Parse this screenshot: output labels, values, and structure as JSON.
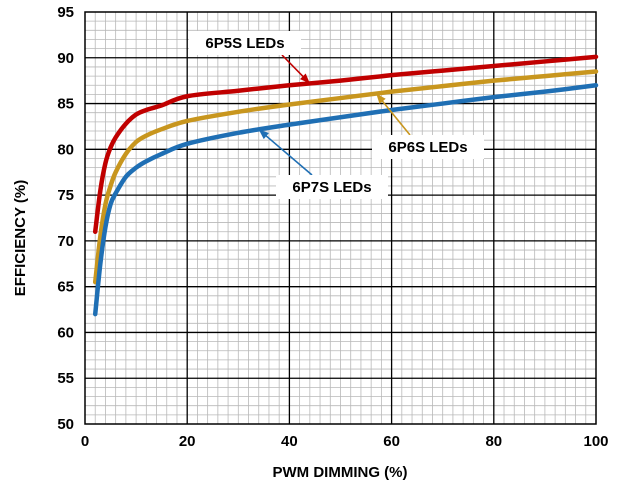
{
  "chart_data": {
    "type": "line",
    "xlabel": "PWM DIMMING (%)",
    "ylabel": "EFFICIENCY (%)",
    "xlim": [
      0,
      100
    ],
    "ylim": [
      50,
      95
    ],
    "x_ticks": [
      "0",
      "20",
      "40",
      "60",
      "80",
      "100"
    ],
    "y_ticks": [
      "50",
      "55",
      "60",
      "65",
      "70",
      "75",
      "80",
      "85",
      "90",
      "95"
    ],
    "grid": true,
    "series": [
      {
        "name": "6P5S LEDs",
        "color": "#c00000",
        "x": [
          2,
          3,
          4,
          5,
          6,
          8,
          10,
          12,
          15,
          20,
          30,
          40,
          50,
          60,
          70,
          80,
          90,
          100
        ],
        "y": [
          71,
          75.5,
          78.5,
          80.2,
          81.3,
          82.8,
          83.8,
          84.3,
          84.8,
          85.8,
          86.4,
          87,
          87.5,
          88.1,
          88.6,
          89.1,
          89.6,
          90.1
        ]
      },
      {
        "name": "6P6S LEDs",
        "color": "#c8961e",
        "x": [
          2,
          3,
          4,
          5,
          6,
          8,
          10,
          12,
          15,
          20,
          30,
          40,
          50,
          60,
          70,
          80,
          90,
          100
        ],
        "y": [
          65.5,
          70.5,
          74,
          76,
          77.5,
          79.5,
          80.8,
          81.5,
          82.2,
          83.1,
          84.1,
          84.9,
          85.6,
          86.3,
          86.9,
          87.5,
          88,
          88.5
        ]
      },
      {
        "name": "6P7S LEDs",
        "color": "#1f6fb4",
        "x": [
          2,
          3,
          4,
          5,
          6,
          8,
          10,
          12,
          15,
          20,
          30,
          40,
          50,
          60,
          70,
          80,
          90,
          100
        ],
        "y": [
          62,
          67.5,
          71.5,
          74,
          75.2,
          77,
          78,
          78.7,
          79.5,
          80.6,
          81.8,
          82.7,
          83.5,
          84.3,
          85,
          85.7,
          86.3,
          87
        ]
      }
    ],
    "annotations": [
      {
        "text": "6P5S LEDs",
        "series": 0,
        "point_x": 44
      },
      {
        "text": "6P6S LEDs",
        "series": 1,
        "point_x": 57
      },
      {
        "text": "6P7S LEDs",
        "series": 2,
        "point_x": 34
      }
    ]
  }
}
